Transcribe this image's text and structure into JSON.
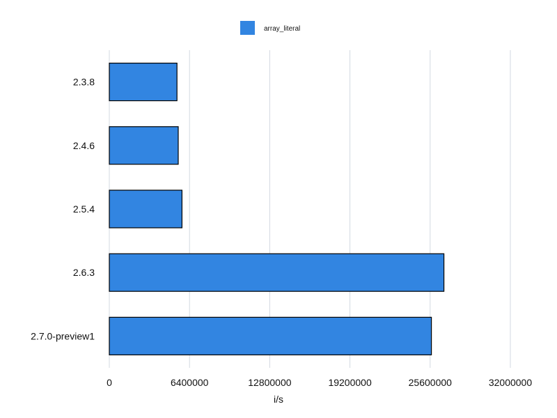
{
  "chart_data": {
    "type": "bar",
    "orientation": "horizontal",
    "categories": [
      "2.3.8",
      "2.4.6",
      "2.5.4",
      "2.6.3",
      "2.7.0-preview1"
    ],
    "series": [
      {
        "name": "array_literal",
        "color": "#3285e1",
        "values": [
          5400000,
          5500000,
          5800000,
          26700000,
          25700000
        ]
      }
    ],
    "title": "",
    "xlabel": "i/s",
    "ylabel": "",
    "xlim": [
      0,
      32000000
    ],
    "x_ticks": [
      "0",
      "6400000",
      "12800000",
      "19200000",
      "25600000",
      "32000000"
    ],
    "grid": true,
    "legend_position": "top-center"
  }
}
